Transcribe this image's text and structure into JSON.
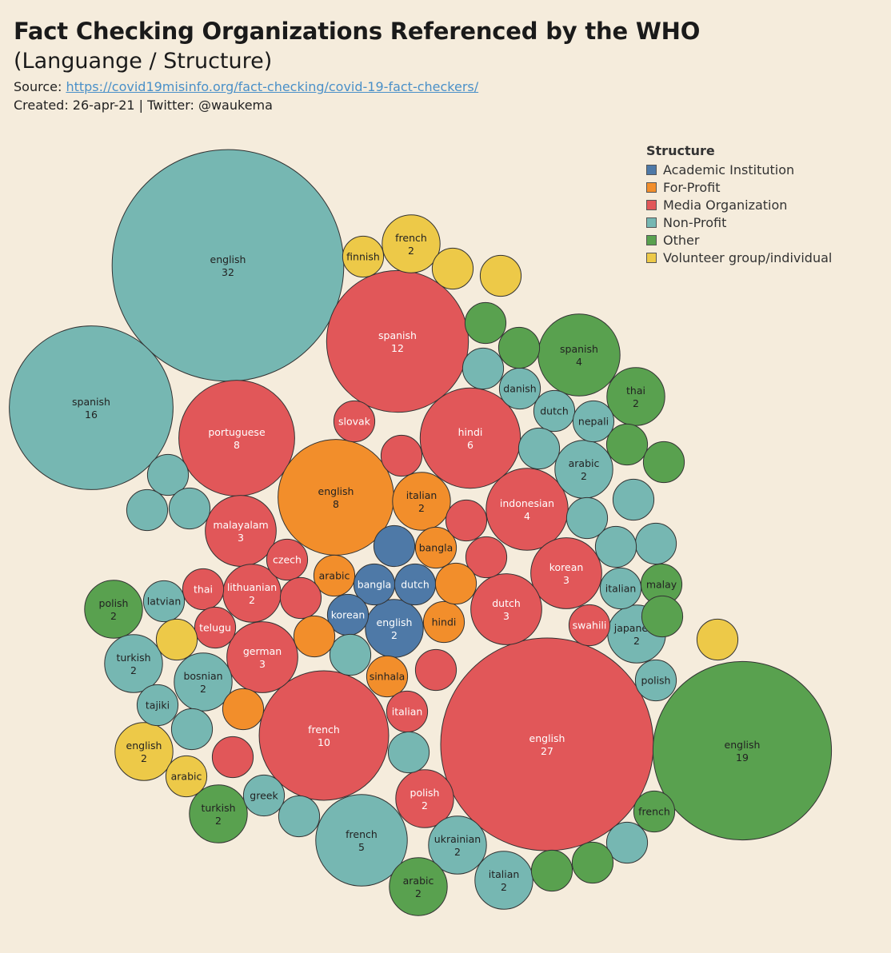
{
  "header": {
    "title": "Fact Checking Organizations Referenced by the WHO",
    "subtitle": "(Languange / Structure)",
    "source_label": "Source: ",
    "source_url": "https://covid19misinfo.org/fact-checking/covid-19-fact-checkers/",
    "created": "Created: 26-apr-21 | Twitter: @waukema"
  },
  "legend": {
    "title": "Structure",
    "items": [
      {
        "label": "Academic Institution",
        "color": "#4e79a7"
      },
      {
        "label": "For-Profit",
        "color": "#f28e2b"
      },
      {
        "label": "Media Organization",
        "color": "#e15759"
      },
      {
        "label": "Non-Profit",
        "color": "#76b7b2"
      },
      {
        "label": "Other",
        "color": "#59a14f"
      },
      {
        "label": "Volunteer group/individual",
        "color": "#edc948"
      }
    ]
  },
  "chart_data": {
    "type": "packed-bubble",
    "size_measure": "count",
    "color_by": "Structure",
    "bubbles": [
      {
        "language": "english",
        "structure": "Non-Profit",
        "count": 32
      },
      {
        "language": "english",
        "structure": "Media Organization",
        "count": 27
      },
      {
        "language": "english",
        "structure": "Other",
        "count": 19
      },
      {
        "language": "spanish",
        "structure": "Non-Profit",
        "count": 16
      },
      {
        "language": "spanish",
        "structure": "Media Organization",
        "count": 12
      },
      {
        "language": "french",
        "structure": "Media Organization",
        "count": 10
      },
      {
        "language": "portuguese",
        "structure": "Media Organization",
        "count": 8
      },
      {
        "language": "english",
        "structure": "For-Profit",
        "count": 8
      },
      {
        "language": "hindi",
        "structure": "Media Organization",
        "count": 6
      },
      {
        "language": "french",
        "structure": "Non-Profit",
        "count": 5
      },
      {
        "language": "spanish",
        "structure": "Other",
        "count": 4
      },
      {
        "language": "indonesian",
        "structure": "Media Organization",
        "count": 4
      },
      {
        "language": "malayalam",
        "structure": "Media Organization",
        "count": 3
      },
      {
        "language": "korean",
        "structure": "Media Organization",
        "count": 3
      },
      {
        "language": "dutch",
        "structure": "Media Organization",
        "count": 3
      },
      {
        "language": "german",
        "structure": "Media Organization",
        "count": 3
      },
      {
        "language": "french",
        "structure": "Volunteer group/individual",
        "count": 2
      },
      {
        "language": "thai",
        "structure": "Other",
        "count": 2
      },
      {
        "language": "arabic",
        "structure": "Non-Profit",
        "count": 2
      },
      {
        "language": "italian",
        "structure": "For-Profit",
        "count": 2
      },
      {
        "language": "lithuanian",
        "structure": "Media Organization",
        "count": 2
      },
      {
        "language": "english",
        "structure": "Academic Institution",
        "count": 2
      },
      {
        "language": "polish",
        "structure": "Other",
        "count": 2
      },
      {
        "language": "turkish",
        "structure": "Non-Profit",
        "count": 2
      },
      {
        "language": "bosnian",
        "structure": "Non-Profit",
        "count": 2
      },
      {
        "language": "japanese",
        "structure": "Non-Profit",
        "count": 2
      },
      {
        "language": "english",
        "structure": "Volunteer group/individual",
        "count": 2
      },
      {
        "language": "turkish",
        "structure": "Other",
        "count": 2
      },
      {
        "language": "polish",
        "structure": "Media Organization",
        "count": 2
      },
      {
        "language": "ukrainian",
        "structure": "Non-Profit",
        "count": 2
      },
      {
        "language": "arabic",
        "structure": "Other",
        "count": 2
      },
      {
        "language": "italian",
        "structure": "Non-Profit",
        "count": 2
      },
      {
        "language": "finnish",
        "structure": "Volunteer group/individual",
        "count": 1
      },
      {
        "language": "slovak",
        "structure": "Media Organization",
        "count": 1
      },
      {
        "language": "danish",
        "structure": "Non-Profit",
        "count": 1
      },
      {
        "language": "dutch",
        "structure": "Non-Profit",
        "count": 1
      },
      {
        "language": "nepali",
        "structure": "Non-Profit",
        "count": 1
      },
      {
        "language": "bangla",
        "structure": "For-Profit",
        "count": 1
      },
      {
        "language": "czech",
        "structure": "Media Organization",
        "count": 1
      },
      {
        "language": "arabic",
        "structure": "For-Profit",
        "count": 1
      },
      {
        "language": "bangla",
        "structure": "Academic Institution",
        "count": 1
      },
      {
        "language": "dutch",
        "structure": "Academic Institution",
        "count": 1
      },
      {
        "language": "thai",
        "structure": "Media Organization",
        "count": 1
      },
      {
        "language": "latvian",
        "structure": "Non-Profit",
        "count": 1
      },
      {
        "language": "korean",
        "structure": "Academic Institution",
        "count": 1
      },
      {
        "language": "hindi",
        "structure": "For-Profit",
        "count": 1
      },
      {
        "language": "telugu",
        "structure": "Media Organization",
        "count": 1
      },
      {
        "language": "swahili",
        "structure": "Media Organization",
        "count": 1
      },
      {
        "language": "italian",
        "structure": "Non-Profit",
        "count": 1
      },
      {
        "language": "malay",
        "structure": "Other",
        "count": 1
      },
      {
        "language": "sinhala",
        "structure": "For-Profit",
        "count": 1
      },
      {
        "language": "italian",
        "structure": "Media Organization",
        "count": 1
      },
      {
        "language": "polish",
        "structure": "Non-Profit",
        "count": 1
      },
      {
        "language": "tajiki",
        "structure": "Non-Profit",
        "count": 1
      },
      {
        "language": "arabic",
        "structure": "Volunteer group/individual",
        "count": 1
      },
      {
        "language": "greek",
        "structure": "Non-Profit",
        "count": 1
      },
      {
        "language": "french",
        "structure": "Other",
        "count": 1
      },
      {
        "language": "",
        "structure": "Volunteer group/individual",
        "count": 1
      },
      {
        "language": "",
        "structure": "Volunteer group/individual",
        "count": 1
      },
      {
        "language": "",
        "structure": "Volunteer group/individual",
        "count": 1
      },
      {
        "language": "",
        "structure": "Other",
        "count": 1
      },
      {
        "language": "",
        "structure": "Other",
        "count": 1
      },
      {
        "language": "",
        "structure": "Non-Profit",
        "count": 1
      },
      {
        "language": "",
        "structure": "Other",
        "count": 1
      },
      {
        "language": "",
        "structure": "Other",
        "count": 1
      },
      {
        "language": "",
        "structure": "Media Organization",
        "count": 1
      },
      {
        "language": "",
        "structure": "Non-Profit",
        "count": 1
      },
      {
        "language": "",
        "structure": "Non-Profit",
        "count": 1
      },
      {
        "language": "",
        "structure": "Non-Profit",
        "count": 1
      },
      {
        "language": "",
        "structure": "Non-Profit",
        "count": 1
      },
      {
        "language": "",
        "structure": "Non-Profit",
        "count": 1
      },
      {
        "language": "",
        "structure": "Non-Profit",
        "count": 1
      },
      {
        "language": "",
        "structure": "Non-Profit",
        "count": 1
      },
      {
        "language": "",
        "structure": "Media Organization",
        "count": 1
      },
      {
        "language": "",
        "structure": "Media Organization",
        "count": 1
      },
      {
        "language": "",
        "structure": "Academic Institution",
        "count": 1
      },
      {
        "language": "",
        "structure": "For-Profit",
        "count": 1
      },
      {
        "language": "",
        "structure": "Non-Profit",
        "count": 1
      },
      {
        "language": "",
        "structure": "Media Organization",
        "count": 1
      },
      {
        "language": "",
        "structure": "Other",
        "count": 1
      },
      {
        "language": "",
        "structure": "Volunteer group/individual",
        "count": 1
      },
      {
        "language": "",
        "structure": "Non-Profit",
        "count": 1
      },
      {
        "language": "",
        "structure": "For-Profit",
        "count": 1
      },
      {
        "language": "",
        "structure": "Media Organization",
        "count": 1
      },
      {
        "language": "",
        "structure": "For-Profit",
        "count": 1
      },
      {
        "language": "",
        "structure": "Non-Profit",
        "count": 1
      },
      {
        "language": "",
        "structure": "Non-Profit",
        "count": 1
      },
      {
        "language": "",
        "structure": "Media Organization",
        "count": 1
      },
      {
        "language": "",
        "structure": "Non-Profit",
        "count": 1
      },
      {
        "language": "",
        "structure": "Non-Profit",
        "count": 1
      },
      {
        "language": "",
        "structure": "Other",
        "count": 1
      },
      {
        "language": "",
        "structure": "Other",
        "count": 1
      },
      {
        "language": "",
        "structure": "Other",
        "count": 1
      }
    ]
  }
}
